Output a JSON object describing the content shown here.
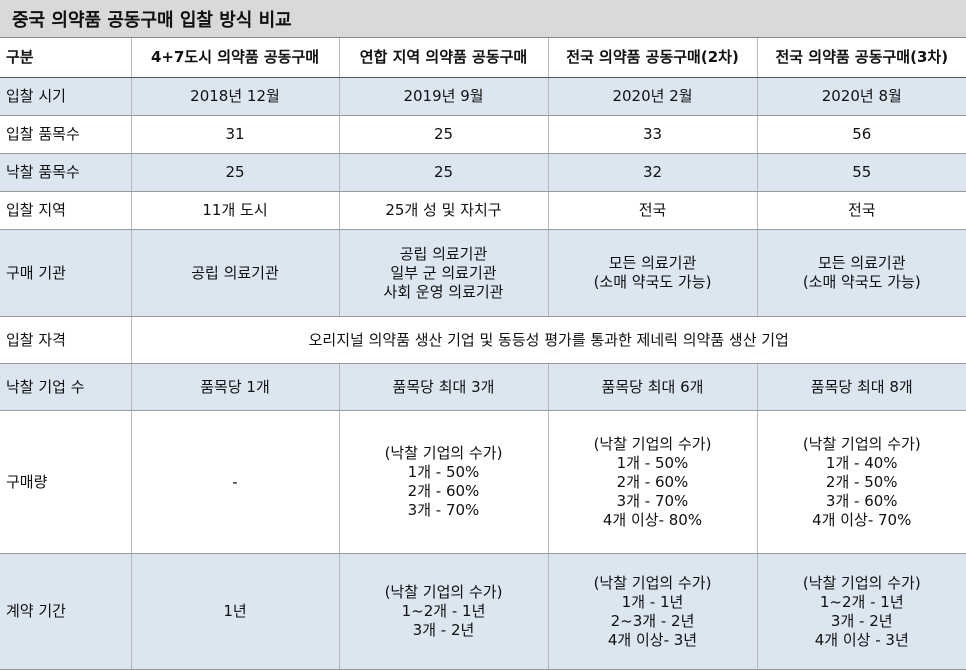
{
  "title": "중국 의약품 공동구매 입찰 방식 비교",
  "header": [
    "구분",
    "4+7도시 의약품 공동구매",
    "연합 지역 의약품 공동구매",
    "전국 의약품 공동구매(2차)",
    "전국 의약품 공동구매(3차)"
  ],
  "rows": [
    {
      "label": "입찰 시기",
      "cells": [
        [
          "2018년 12월"
        ],
        [
          "2019년 9월"
        ],
        [
          "2020년 2월"
        ],
        [
          "2020년 8월"
        ]
      ]
    },
    {
      "label": "입찰 품목수",
      "cells": [
        [
          "31"
        ],
        [
          "25"
        ],
        [
          "33"
        ],
        [
          "56"
        ]
      ]
    },
    {
      "label": "낙찰 품목수",
      "cells": [
        [
          "25"
        ],
        [
          "25"
        ],
        [
          "32"
        ],
        [
          "55"
        ]
      ]
    },
    {
      "label": "입찰 지역",
      "cells": [
        [
          "11개 도시"
        ],
        [
          "25개 성 및 자치구"
        ],
        [
          "전국"
        ],
        [
          "전국"
        ]
      ]
    },
    {
      "label": "구매 기관",
      "cells": [
        [
          "공립 의료기관"
        ],
        [
          "공립 의료기관",
          "일부 군 의료기관",
          "사회 운영 의료기관"
        ],
        [
          "모든 의료기관",
          "(소매 약국도 가능)"
        ],
        [
          "모든 의료기관",
          "(소매 약국도 가능)"
        ]
      ]
    },
    {
      "label": "입찰 자격",
      "merged": "오리지널 의약품 생산 기업 및 동등성 평가를 통과한 제네릭 의약품 생산 기업"
    },
    {
      "label": "낙찰 기업 수",
      "cells": [
        [
          "품목당 1개"
        ],
        [
          "품목당 최대 3개"
        ],
        [
          "품목당 최대 6개"
        ],
        [
          "품목당 최대 8개"
        ]
      ]
    },
    {
      "label": "구매량",
      "cells": [
        [
          "-"
        ],
        [
          "(낙찰 기업의 수가)",
          "1개 - 50%",
          "2개 - 60%",
          "3개 - 70%"
        ],
        [
          "(낙찰 기업의 수가)",
          "1개 - 50%",
          "2개 - 60%",
          "3개 - 70%",
          "4개 이상- 80%"
        ],
        [
          "(낙찰 기업의 수가)",
          "1개 - 40%",
          "2개 - 50%",
          "3개 - 60%",
          "4개 이상- 70%"
        ]
      ]
    },
    {
      "label": "계약 기간",
      "cells": [
        [
          "1년"
        ],
        [
          "(낙찰 기업의 수가)",
          "1~2개 - 1년",
          "3개 - 2년"
        ],
        [
          "(낙찰 기업의 수가)",
          "1개 - 1년",
          "2~3개 - 2년",
          "4개 이상- 3년"
        ],
        [
          "(낙찰 기업의 수가)",
          "1~2개 - 1년",
          "3개 - 2년",
          "4개 이상 - 3년"
        ]
      ]
    }
  ]
}
